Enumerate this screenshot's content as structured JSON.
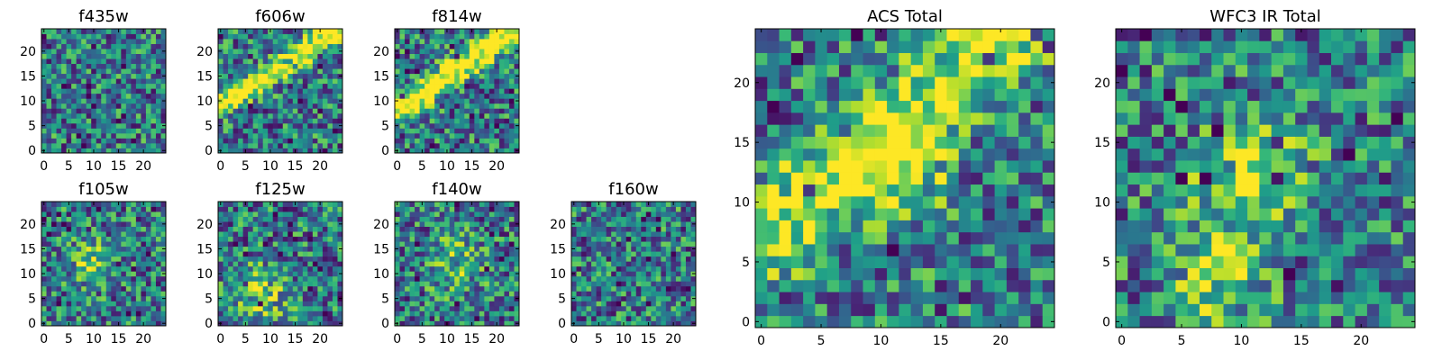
{
  "chart_data": [
    {
      "type": "heatmap",
      "title": "f435w",
      "xticks": [
        "0",
        "5",
        "10",
        "15",
        "20"
      ],
      "yticks": [
        "0",
        "5",
        "10",
        "15",
        "20"
      ],
      "xlim": [
        0,
        25
      ],
      "ylim": [
        0,
        25
      ],
      "colormap": "viridis",
      "features": []
    },
    {
      "type": "heatmap",
      "title": "f606w",
      "xticks": [
        "0",
        "5",
        "10",
        "15",
        "20"
      ],
      "yticks": [
        "0",
        "5",
        "10",
        "15",
        "20"
      ],
      "xlim": [
        0,
        25
      ],
      "ylim": [
        0,
        25
      ],
      "colormap": "viridis",
      "features": [
        {
          "kind": "diagonal",
          "x0": 0,
          "y0": 9,
          "x1": 23,
          "y1": 24,
          "w": 1.5,
          "a": 0.75
        }
      ]
    },
    {
      "type": "heatmap",
      "title": "f814w",
      "xticks": [
        "0",
        "5",
        "10",
        "15",
        "20"
      ],
      "yticks": [
        "0",
        "5",
        "10",
        "15",
        "20"
      ],
      "xlim": [
        0,
        25
      ],
      "ylim": [
        0,
        25
      ],
      "colormap": "viridis",
      "features": [
        {
          "kind": "diagonal",
          "x0": 0,
          "y0": 8,
          "x1": 23,
          "y1": 24,
          "w": 1.8,
          "a": 0.75
        }
      ]
    },
    {
      "type": "heatmap",
      "title": "f105w",
      "xticks": [
        "0",
        "5",
        "10",
        "15",
        "20"
      ],
      "yticks": [
        "0",
        "5",
        "10",
        "15",
        "20"
      ],
      "xlim": [
        0,
        25
      ],
      "ylim": [
        0,
        25
      ],
      "colormap": "viridis",
      "features": [
        {
          "kind": "blob",
          "cx": 10,
          "cy": 12,
          "r": 3,
          "a": 0.4
        }
      ]
    },
    {
      "type": "heatmap",
      "title": "f125w",
      "xticks": [
        "0",
        "5",
        "10",
        "15",
        "20"
      ],
      "yticks": [
        "0",
        "5",
        "10",
        "15",
        "20"
      ],
      "xlim": [
        0,
        25
      ],
      "ylim": [
        0,
        25
      ],
      "colormap": "viridis",
      "features": [
        {
          "kind": "blob",
          "cx": 8,
          "cy": 6,
          "r": 4,
          "a": 0.3
        }
      ]
    },
    {
      "type": "heatmap",
      "title": "f140w",
      "xticks": [
        "0",
        "5",
        "10",
        "15",
        "20"
      ],
      "yticks": [
        "0",
        "5",
        "10",
        "15",
        "20"
      ],
      "xlim": [
        0,
        25
      ],
      "ylim": [
        0,
        25
      ],
      "colormap": "viridis",
      "features": [
        {
          "kind": "blob",
          "cx": 12,
          "cy": 12,
          "r": 4,
          "a": 0.25
        }
      ]
    },
    {
      "type": "heatmap",
      "title": "f160w",
      "xticks": [
        "0",
        "5",
        "10",
        "15",
        "20"
      ],
      "yticks": [
        "0",
        "5",
        "10",
        "15",
        "20"
      ],
      "xlim": [
        0,
        25
      ],
      "ylim": [
        0,
        25
      ],
      "colormap": "viridis",
      "features": []
    },
    {
      "type": "heatmap",
      "title": "ACS Total",
      "xticks": [
        "0",
        "5",
        "10",
        "15",
        "20"
      ],
      "yticks": [
        "0",
        "5",
        "10",
        "15",
        "20"
      ],
      "xlim": [
        0,
        25
      ],
      "ylim": [
        0,
        25
      ],
      "colormap": "viridis",
      "features": [
        {
          "kind": "diagonal",
          "x0": 0,
          "y0": 7,
          "x1": 21,
          "y1": 24,
          "w": 2.5,
          "a": 0.5
        },
        {
          "kind": "blob",
          "cx": 11,
          "cy": 13,
          "r": 3,
          "a": 0.45
        }
      ]
    },
    {
      "type": "heatmap",
      "title": "WFC3 IR Total",
      "xticks": [
        "0",
        "5",
        "10",
        "15",
        "20"
      ],
      "yticks": [
        "0",
        "5",
        "10",
        "15",
        "20"
      ],
      "xlim": [
        0,
        25
      ],
      "ylim": [
        0,
        25
      ],
      "colormap": "viridis",
      "features": [
        {
          "kind": "blob",
          "cx": 11,
          "cy": 12,
          "r": 3,
          "a": 0.55
        },
        {
          "kind": "blob",
          "cx": 8,
          "cy": 4,
          "r": 3,
          "a": 0.35
        }
      ]
    }
  ]
}
